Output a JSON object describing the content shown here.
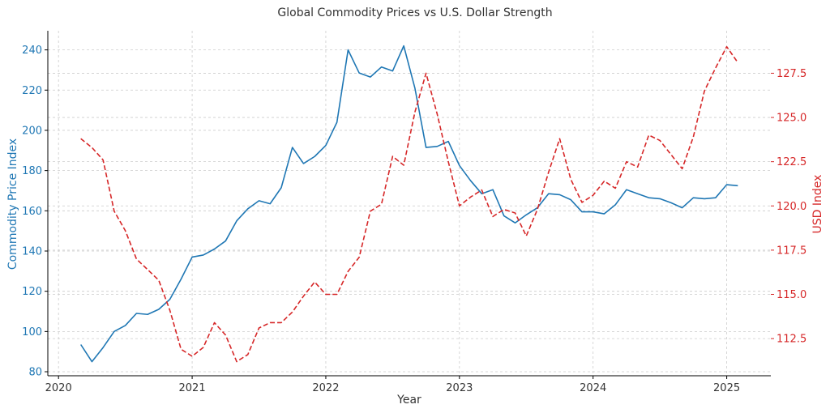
{
  "chart_data": {
    "type": "line",
    "title": "Global Commodity Prices vs U.S. Dollar Strength",
    "xlabel": "Year",
    "ylabel_left": "Commodity Price Index",
    "ylabel_right": "USD Index",
    "xlim": [
      2019.92,
      2025.33
    ],
    "ylim_left": [
      78,
      249.5
    ],
    "ylim_right": [
      110.4,
      129.9
    ],
    "grid": true,
    "x_ticks": [
      "2020",
      "2021",
      "2022",
      "2023",
      "2024",
      "2025"
    ],
    "left_ticks": [
      "80",
      "100",
      "120",
      "140",
      "160",
      "180",
      "200",
      "220",
      "240"
    ],
    "right_ticks": [
      "112.5",
      "115.0",
      "117.5",
      "120.0",
      "122.5",
      "125.0",
      "127.5"
    ],
    "colors": {
      "commodity": "#1f77b4",
      "usd": "#d62728",
      "grid": "#cccccc",
      "axis": "#000000"
    },
    "x": [
      2020.1667,
      2020.25,
      2020.3333,
      2020.4167,
      2020.5,
      2020.5833,
      2020.6667,
      2020.75,
      2020.8333,
      2020.9167,
      2021.0,
      2021.0833,
      2021.1667,
      2021.25,
      2021.3333,
      2021.4167,
      2021.5,
      2021.5833,
      2021.6667,
      2021.75,
      2021.8333,
      2021.9167,
      2022.0,
      2022.0833,
      2022.1667,
      2022.25,
      2022.3333,
      2022.4167,
      2022.5,
      2022.5833,
      2022.6667,
      2022.75,
      2022.8333,
      2022.9167,
      2023.0,
      2023.0833,
      2023.1667,
      2023.25,
      2023.3333,
      2023.4167,
      2023.5,
      2023.5833,
      2023.6667,
      2023.75,
      2023.8333,
      2023.9167,
      2024.0,
      2024.0833,
      2024.1667,
      2024.25,
      2024.3333,
      2024.4167,
      2024.5,
      2024.5833,
      2024.6667,
      2024.75,
      2024.8333,
      2024.9167,
      2025.0,
      2025.0833
    ],
    "series": [
      {
        "name": "Commodity Price Index",
        "axis": "left",
        "style": "solid",
        "values": [
          93.5,
          85,
          92,
          100,
          103,
          109,
          108.5,
          111,
          116,
          126,
          137,
          138,
          141,
          145,
          155,
          161,
          165,
          163.5,
          171.5,
          191.5,
          183.5,
          187,
          192.5,
          204,
          240,
          228.5,
          226.5,
          231.5,
          229.5,
          242,
          221,
          191.5,
          192,
          194.5,
          182.5,
          175,
          168.5,
          170.5,
          157.5,
          154,
          158,
          161.5,
          168.5,
          168,
          165.5,
          159.5,
          159.5,
          158.5,
          163,
          170.5,
          168.5,
          166.5,
          166,
          164,
          161.5,
          166.5,
          166,
          166.5,
          173,
          172.5
        ]
      },
      {
        "name": "USD Index",
        "axis": "right",
        "style": "dashed",
        "values": [
          123.8,
          123.3,
          122.6,
          119.7,
          118.6,
          117,
          116.4,
          115.8,
          114.1,
          111.9,
          111.5,
          112,
          113.4,
          112.7,
          111.2,
          111.6,
          113.1,
          113.4,
          113.4,
          114,
          114.9,
          115.7,
          115,
          115,
          116.3,
          117.1,
          119.7,
          120.1,
          122.8,
          122.3,
          125.3,
          127.5,
          125.2,
          122.5,
          120,
          120.5,
          120.9,
          119.4,
          119.8,
          119.6,
          118.3,
          119.8,
          121.9,
          123.8,
          121.5,
          120.2,
          120.6,
          121.4,
          121,
          122.5,
          122.2,
          124,
          123.7,
          122.9,
          122.1,
          123.9,
          126.5,
          127.8,
          129,
          128.1
        ]
      }
    ]
  }
}
